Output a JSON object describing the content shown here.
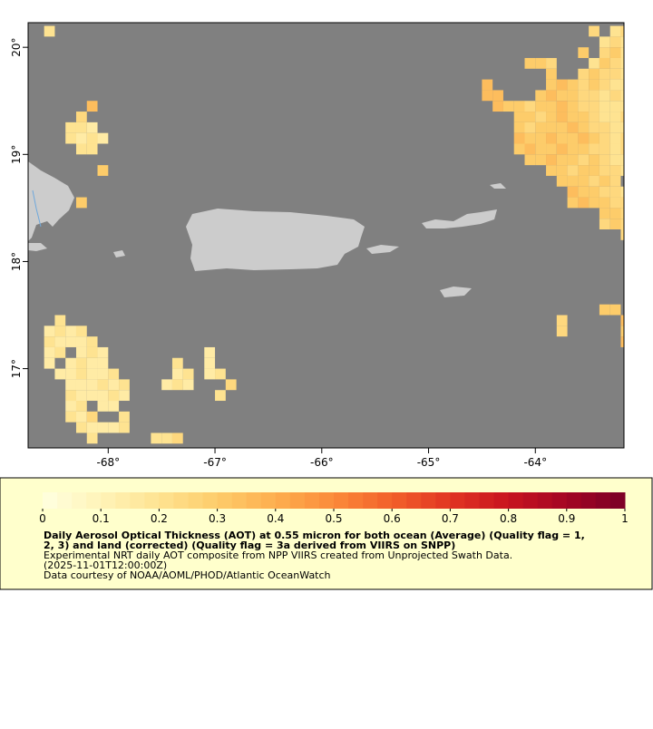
{
  "map": {
    "xlim": [
      -68.75,
      -63.17
    ],
    "ylim": [
      16.26,
      20.23
    ],
    "xticks": [
      {
        "value": -68,
        "label": "-68°"
      },
      {
        "value": -67,
        "label": "-67°"
      },
      {
        "value": -66,
        "label": "-66°"
      },
      {
        "value": -65,
        "label": "-65°"
      },
      {
        "value": -64,
        "label": "-64°"
      }
    ],
    "yticks": [
      {
        "value": 17,
        "label": "17°"
      },
      {
        "value": 18,
        "label": "18°"
      },
      {
        "value": 19,
        "label": "19°"
      },
      {
        "value": 20,
        "label": "20°"
      }
    ],
    "ocean_color": "#808080",
    "rows": [
      {
        "lat": 20.1,
        "lon": -68.6,
        "aot": [
          0.2
        ]
      },
      {
        "lat": 19.4,
        "lon": -68.2,
        "aot": [
          0.35
        ]
      },
      {
        "lat": 19.3,
        "lon": -68.3,
        "aot": [
          0.25
        ]
      },
      {
        "lat": 19.2,
        "lon": -68.4,
        "aot": [
          0.2,
          0.2,
          0.15
        ]
      },
      {
        "lat": 19.1,
        "lon": -68.4,
        "aot": [
          0.2,
          0.15,
          0.2,
          0.15
        ]
      },
      {
        "lat": 19.0,
        "lon": -68.3,
        "aot": [
          0.2,
          0.2
        ]
      },
      {
        "lat": 18.8,
        "lon": -68.1,
        "aot": [
          0.3
        ]
      },
      {
        "lat": 18.5,
        "lon": -68.3,
        "aot": [
          0.3
        ]
      },
      {
        "lat": 17.4,
        "lon": -68.5,
        "aot": [
          0.2
        ]
      },
      {
        "lat": 17.3,
        "lon": -68.6,
        "aot": [
          0.15,
          0.2,
          0.15,
          0.2
        ]
      },
      {
        "lat": 17.2,
        "lon": -68.6,
        "aot": [
          0.2,
          0.15,
          0.15,
          0.15,
          0.2
        ]
      },
      {
        "lat": 17.1,
        "lon": -68.6,
        "aot": [
          0.15,
          0.2
        ]
      },
      {
        "lat": 17.1,
        "lon": -68.3,
        "aot": [
          0.15,
          0.2,
          0.15
        ]
      },
      {
        "lat": 17.0,
        "lon": -68.6,
        "aot": [
          0.15
        ]
      },
      {
        "lat": 17.0,
        "lon": -68.4,
        "aot": [
          0.15,
          0.2,
          0.15,
          0.15
        ]
      },
      {
        "lat": 16.9,
        "lon": -68.5,
        "aot": [
          0.15,
          0.15,
          0.2,
          0.15,
          0.15,
          0.2
        ]
      },
      {
        "lat": 16.8,
        "lon": -68.4,
        "aot": [
          0.15,
          0.15,
          0.15,
          0.2,
          0.15,
          0.2
        ]
      },
      {
        "lat": 16.7,
        "lon": -68.4,
        "aot": [
          0.2,
          0.15,
          0.15,
          0.15,
          0.2,
          0.15
        ]
      },
      {
        "lat": 16.6,
        "lon": -68.4,
        "aot": [
          0.15,
          0.2
        ]
      },
      {
        "lat": 16.6,
        "lon": -68.1,
        "aot": [
          0.15,
          0.15
        ]
      },
      {
        "lat": 16.5,
        "lon": -68.4,
        "aot": [
          0.2,
          0.15,
          0.25
        ]
      },
      {
        "lat": 16.5,
        "lon": -67.9,
        "aot": [
          0.2
        ]
      },
      {
        "lat": 16.4,
        "lon": -68.3,
        "aot": [
          0.2,
          0.15,
          0.15,
          0.15,
          0.2
        ]
      },
      {
        "lat": 16.3,
        "lon": -68.2,
        "aot": [
          0.2
        ]
      },
      {
        "lat": 16.3,
        "lon": -67.6,
        "aot": [
          0.2,
          0.2,
          0.25
        ]
      },
      {
        "lat": 17.1,
        "lon": -67.1,
        "aot": [
          0.15
        ]
      },
      {
        "lat": 17.0,
        "lon": -67.4,
        "aot": [
          0.2
        ]
      },
      {
        "lat": 17.0,
        "lon": -67.1,
        "aot": [
          0.15
        ]
      },
      {
        "lat": 16.9,
        "lon": -67.4,
        "aot": [
          0.15,
          0.2
        ]
      },
      {
        "lat": 16.9,
        "lon": -67.1,
        "aot": [
          0.15,
          0.2
        ]
      },
      {
        "lat": 16.8,
        "lon": -67.5,
        "aot": [
          0.15,
          0.2,
          0.15
        ]
      },
      {
        "lat": 16.8,
        "lon": -66.9,
        "aot": [
          0.25
        ]
      },
      {
        "lat": 16.7,
        "lon": -67.0,
        "aot": [
          0.2
        ]
      },
      {
        "lat": 20.1,
        "lon": -63.5,
        "aot": [
          0.25
        ]
      },
      {
        "lat": 20.1,
        "lon": -63.3,
        "aot": [
          0.2,
          0.25
        ]
      },
      {
        "lat": 20.0,
        "lon": -63.4,
        "aot": [
          0.2,
          0.25,
          0.2
        ]
      },
      {
        "lat": 19.9,
        "lon": -63.6,
        "aot": [
          0.3
        ]
      },
      {
        "lat": 19.9,
        "lon": -63.4,
        "aot": [
          0.25,
          0.3,
          0.2
        ]
      },
      {
        "lat": 19.8,
        "lon": -64.1,
        "aot": [
          0.3,
          0.3,
          0.25
        ]
      },
      {
        "lat": 19.8,
        "lon": -63.5,
        "aot": [
          0.2,
          0.3,
          0.25,
          0.2
        ]
      },
      {
        "lat": 19.7,
        "lon": -63.9,
        "aot": [
          0.3
        ]
      },
      {
        "lat": 19.7,
        "lon": -63.6,
        "aot": [
          0.25,
          0.3,
          0.25,
          0.25,
          0.2
        ]
      },
      {
        "lat": 19.6,
        "lon": -64.5,
        "aot": [
          0.35
        ]
      },
      {
        "lat": 19.6,
        "lon": -63.9,
        "aot": [
          0.3,
          0.35,
          0.3,
          0.25,
          0.3,
          0.25,
          0.2,
          0.2
        ]
      },
      {
        "lat": 19.5,
        "lon": -64.5,
        "aot": [
          0.35,
          0.35
        ]
      },
      {
        "lat": 19.5,
        "lon": -64.0,
        "aot": [
          0.3,
          0.35,
          0.3,
          0.3,
          0.25,
          0.25,
          0.2,
          0.25,
          0.2
        ]
      },
      {
        "lat": 19.4,
        "lon": -64.4,
        "aot": [
          0.35,
          0.3,
          0.3,
          0.25,
          0.3,
          0.3,
          0.35,
          0.3,
          0.25,
          0.25,
          0.2,
          0.2,
          0.2
        ]
      },
      {
        "lat": 19.3,
        "lon": -64.2,
        "aot": [
          0.3,
          0.3,
          0.25,
          0.3,
          0.35,
          0.3,
          0.3,
          0.25,
          0.2,
          0.2,
          0.25
        ]
      },
      {
        "lat": 19.2,
        "lon": -64.2,
        "aot": [
          0.3,
          0.25,
          0.3,
          0.3,
          0.3,
          0.35,
          0.3,
          0.25,
          0.25,
          0.2,
          0.2
        ]
      },
      {
        "lat": 19.1,
        "lon": -64.2,
        "aot": [
          0.35,
          0.3,
          0.3,
          0.35,
          0.3,
          0.3,
          0.35,
          0.3,
          0.25,
          0.2,
          0.25
        ]
      },
      {
        "lat": 19.0,
        "lon": -64.2,
        "aot": [
          0.3,
          0.35,
          0.3,
          0.3,
          0.35,
          0.3,
          0.3,
          0.25,
          0.25,
          0.2,
          0.25
        ]
      },
      {
        "lat": 18.9,
        "lon": -64.1,
        "aot": [
          0.3,
          0.3,
          0.35,
          0.3,
          0.3,
          0.25,
          0.3,
          0.25,
          0.2,
          0.2
        ]
      },
      {
        "lat": 18.8,
        "lon": -63.9,
        "aot": [
          0.3,
          0.3,
          0.25,
          0.3,
          0.3,
          0.25,
          0.25,
          0.2
        ]
      },
      {
        "lat": 18.7,
        "lon": -63.8,
        "aot": [
          0.3,
          0.3,
          0.3,
          0.25,
          0.3,
          0.25
        ]
      },
      {
        "lat": 18.6,
        "lon": -63.7,
        "aot": [
          0.35,
          0.3,
          0.3,
          0.25,
          0.25,
          0.2
        ]
      },
      {
        "lat": 18.5,
        "lon": -63.7,
        "aot": [
          0.3,
          0.35,
          0.3,
          0.3,
          0.25,
          0.25
        ]
      },
      {
        "lat": 18.4,
        "lon": -63.4,
        "aot": [
          0.3,
          0.3,
          0.25
        ]
      },
      {
        "lat": 18.3,
        "lon": -63.4,
        "aot": [
          0.25,
          0.3,
          0.25
        ]
      },
      {
        "lat": 18.2,
        "lon": -63.2,
        "aot": [
          0.25
        ]
      },
      {
        "lat": 17.5,
        "lon": -63.4,
        "aot": [
          0.3,
          0.3
        ]
      },
      {
        "lat": 17.4,
        "lon": -63.8,
        "aot": [
          0.25
        ]
      },
      {
        "lat": 17.4,
        "lon": -63.2,
        "aot": [
          0.35
        ]
      },
      {
        "lat": 17.3,
        "lon": -63.8,
        "aot": [
          0.25
        ]
      },
      {
        "lat": 17.3,
        "lon": -63.2,
        "aot": [
          0.3
        ]
      },
      {
        "lat": 17.2,
        "lon": -63.2,
        "aot": [
          0.35
        ]
      }
    ]
  },
  "legend": {
    "ticks": [
      0,
      0.1,
      0.2,
      0.3,
      0.4,
      0.5,
      0.6,
      0.7,
      0.8,
      0.9,
      1
    ],
    "colors": [
      "#ffffe0",
      "#fff3b8",
      "#fee391",
      "#fdcc6a",
      "#fdae4f",
      "#fb8a3a",
      "#f2602a",
      "#e13422",
      "#c8141f",
      "#a30523",
      "#7a0026"
    ],
    "title_lines": [
      "Daily Aerosol Optical Thickness (AOT) at 0.55 micron for both ocean (Average) (Quality flag = 1,",
      "2, 3) and land (corrected) (Quality flag = 3a derived from VIIRS on SNPP)"
    ],
    "lines": [
      "Experimental NRT daily AOT composite from NPP VIIRS created from Unprojected Swath Data.",
      "(2025-11-01T12:00:00Z)",
      "Data courtesy of NOAA/AOML/PHOD/Atlantic OceanWatch"
    ]
  }
}
